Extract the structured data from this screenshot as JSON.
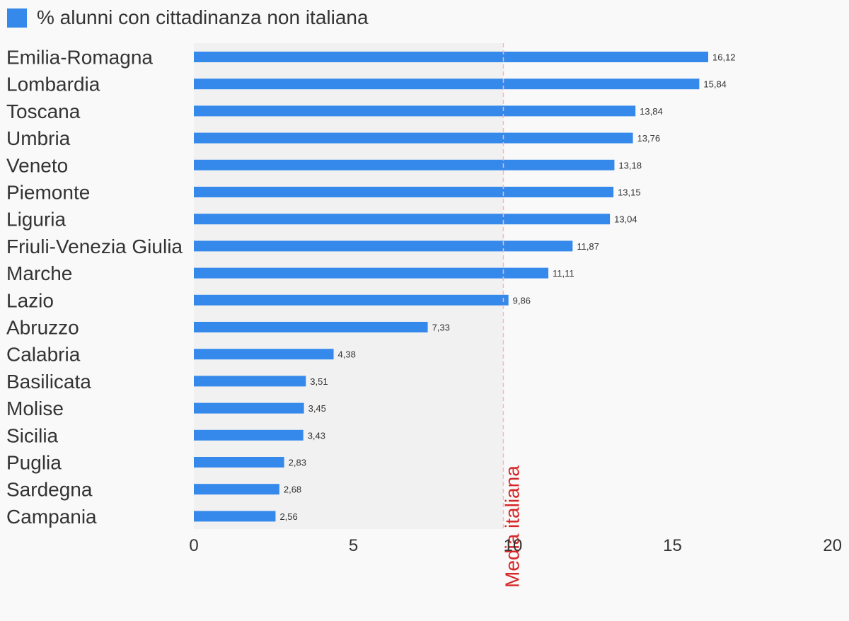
{
  "legend": {
    "label": "% alunni con cittadinanza non italiana",
    "color": "#3589ea"
  },
  "chart_data": {
    "type": "bar",
    "orientation": "horizontal",
    "categories": [
      "Emilia-Romagna",
      "Lombardia",
      "Toscana",
      "Umbria",
      "Veneto",
      "Piemonte",
      "Liguria",
      "Friuli-Venezia Giulia",
      "Marche",
      "Lazio",
      "Abruzzo",
      "Calabria",
      "Basilicata",
      "Molise",
      "Sicilia",
      "Puglia",
      "Sardegna",
      "Campania"
    ],
    "values": [
      16.12,
      15.84,
      13.84,
      13.76,
      13.18,
      13.15,
      13.04,
      11.87,
      11.11,
      9.86,
      7.33,
      4.38,
      3.51,
      3.45,
      3.43,
      2.83,
      2.68,
      2.56
    ],
    "value_labels": [
      "16,12",
      "15,84",
      "13,84",
      "13,76",
      "13,18",
      "13,15",
      "13,04",
      "11,87",
      "11,11",
      "9,86",
      "7,33",
      "4,38",
      "3,51",
      "3,45",
      "3,43",
      "2,83",
      "2,68",
      "2,56"
    ],
    "xlim": [
      0,
      20
    ],
    "xticks": [
      0,
      5,
      10,
      15,
      20
    ],
    "xtick_labels": [
      "0",
      "5",
      "10",
      "15",
      "20"
    ],
    "reference_line": {
      "value": 9.7,
      "label": "Media italiana",
      "color": "#d62728",
      "band_color": "#f1f1f1"
    },
    "series_color": "#3589ea",
    "grid": false,
    "legend_position": "top-left"
  }
}
